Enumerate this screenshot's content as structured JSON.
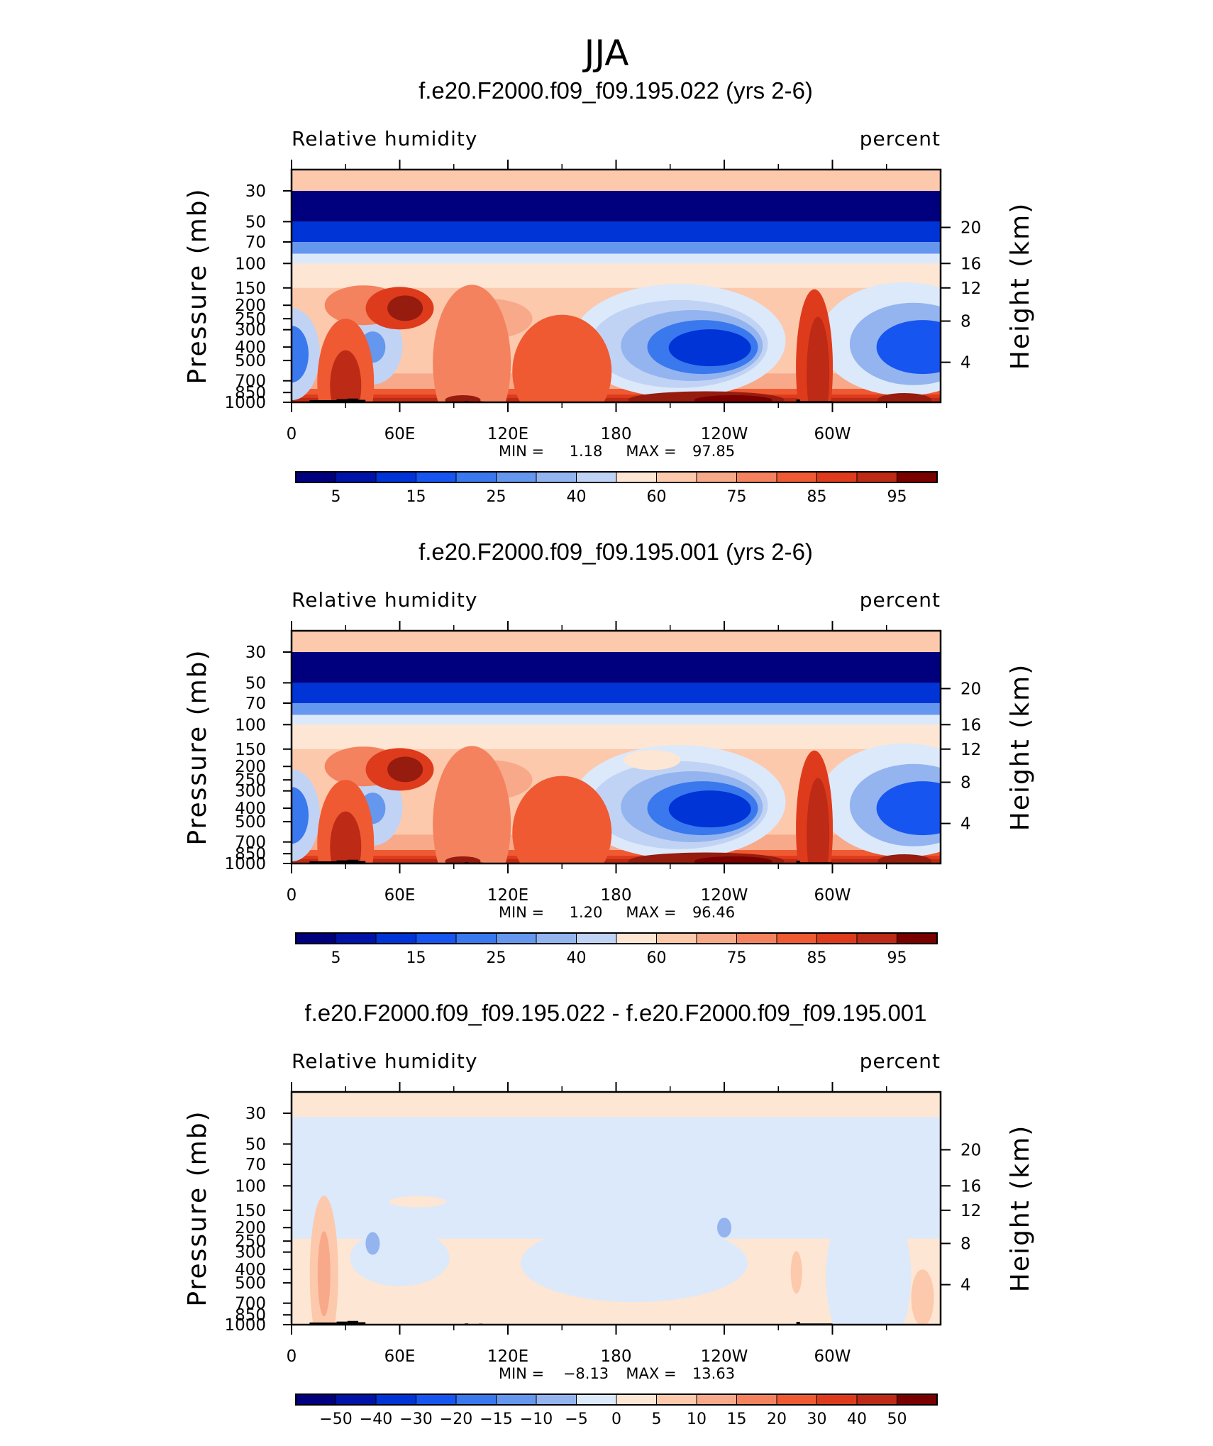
{
  "figure_title": "JJA",
  "colors": {
    "palette_blue_to_red": [
      "#00007f",
      "#0013a8",
      "#0034d6",
      "#1755f0",
      "#3a78ee",
      "#6597ee",
      "#93b4ef",
      "#c1d3f4",
      "#dce9fb",
      "#fde6d3",
      "#fcc9ac",
      "#f8a98a",
      "#f4825f",
      "#ef5a33",
      "#de3b1c",
      "#bd2a15",
      "#961c0f",
      "#7a0000"
    ],
    "land_mask": "#000000",
    "background": "#ffffff"
  },
  "colorbars": {
    "absolute": [
      "5",
      "15",
      "25",
      "40",
      "60",
      "75",
      "85",
      "95"
    ],
    "difference": [
      "−50",
      "−40",
      "−30",
      "−20",
      "−15",
      "−10",
      "−5",
      "0",
      "5",
      "10",
      "15",
      "20",
      "30",
      "40",
      "50"
    ]
  },
  "chart_data": [
    {
      "type": "heatmap",
      "title": "f.e20.F2000.f09_f09.195.022 (yrs 2-6)",
      "variable": "Relative humidity",
      "units": "percent",
      "xlabel": "",
      "ylabel": "Pressure (mb)",
      "ylabel_right": "Height (km)",
      "x_tick_labels": [
        "0",
        "60E",
        "120E",
        "180",
        "120W",
        "60W"
      ],
      "y_tick_labels": [
        "30",
        "50",
        "70",
        "100",
        "150",
        "200",
        "250",
        "300",
        "400",
        "500",
        "700",
        "850",
        "1000"
      ],
      "y_right_tick_labels": [
        "20",
        "16",
        "12",
        "8",
        "4"
      ],
      "min_label": "MIN =",
      "min": "1.18",
      "max_label": "MAX =",
      "max": "97.85",
      "contour_levels": [
        5,
        10,
        15,
        20,
        25,
        30,
        35,
        40,
        50,
        60,
        65,
        70,
        75,
        80,
        85,
        90,
        95
      ],
      "colorbar": "absolute"
    },
    {
      "type": "heatmap",
      "title": "f.e20.F2000.f09_f09.195.001 (yrs 2-6)",
      "variable": "Relative humidity",
      "units": "percent",
      "xlabel": "",
      "ylabel": "Pressure (mb)",
      "ylabel_right": "Height (km)",
      "x_tick_labels": [
        "0",
        "60E",
        "120E",
        "180",
        "120W",
        "60W"
      ],
      "y_tick_labels": [
        "30",
        "50",
        "70",
        "100",
        "150",
        "200",
        "250",
        "300",
        "400",
        "500",
        "700",
        "850",
        "1000"
      ],
      "y_right_tick_labels": [
        "20",
        "16",
        "12",
        "8",
        "4"
      ],
      "min_label": "MIN =",
      "min": "1.20",
      "max_label": "MAX =",
      "max": "96.46",
      "contour_levels": [
        5,
        10,
        15,
        20,
        25,
        30,
        35,
        40,
        50,
        60,
        65,
        70,
        75,
        80,
        85,
        90,
        95
      ],
      "colorbar": "absolute"
    },
    {
      "type": "heatmap",
      "title": "f.e20.F2000.f09_f09.195.022 - f.e20.F2000.f09_f09.195.001",
      "variable": "Relative humidity",
      "units": "percent",
      "xlabel": "",
      "ylabel": "Pressure (mb)",
      "ylabel_right": "Height (km)",
      "x_tick_labels": [
        "0",
        "60E",
        "120E",
        "180",
        "120W",
        "60W"
      ],
      "y_tick_labels": [
        "30",
        "50",
        "70",
        "100",
        "150",
        "200",
        "250",
        "300",
        "400",
        "500",
        "700",
        "850",
        "1000"
      ],
      "y_right_tick_labels": [
        "20",
        "16",
        "12",
        "8",
        "4"
      ],
      "min_label": "MIN =",
      "min": "−8.13",
      "max_label": "MAX =",
      "max": "13.63",
      "contour_levels": [
        -50,
        -40,
        -30,
        -20,
        -15,
        -10,
        -5,
        0,
        5,
        10,
        15,
        20,
        30,
        40,
        50
      ],
      "colorbar": "difference"
    }
  ]
}
